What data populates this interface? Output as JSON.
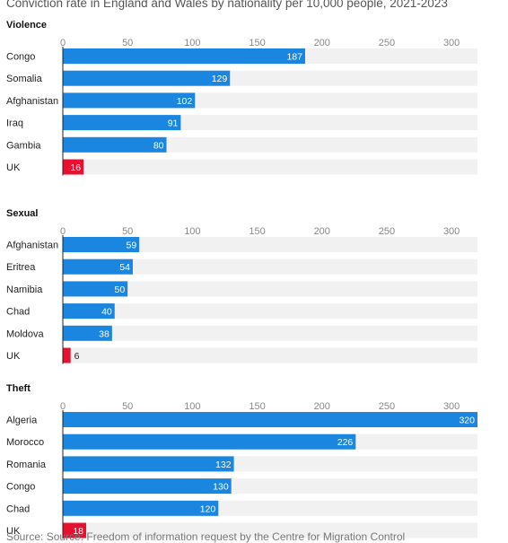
{
  "subtitle": "Conviction rate in England and Wales by nationality per 10,000 people, 2021-2023",
  "source": "Source: Source: Freedom of information request by the Centre for Migration Control",
  "colors": {
    "bar": "#1a86e0",
    "highlight": "#e8102e",
    "track": "#f1f1f1",
    "axis": "#222222"
  },
  "chart_data": [
    {
      "type": "bar",
      "title": "Violence",
      "categories": [
        "Congo",
        "Somalia",
        "Afghanistan",
        "Iraq",
        "Gambia",
        "UK"
      ],
      "values": [
        187,
        129,
        102,
        91,
        80,
        16
      ],
      "highlight": [
        "UK"
      ],
      "xlim": [
        0,
        320
      ],
      "xticks": [
        0,
        50,
        100,
        150,
        200,
        250,
        300
      ]
    },
    {
      "type": "bar",
      "title": "Sexual",
      "categories": [
        "Afghanistan",
        "Eritrea",
        "Namibia",
        "Chad",
        "Moldova",
        "UK"
      ],
      "values": [
        59,
        54,
        50,
        40,
        38,
        6
      ],
      "highlight": [
        "UK"
      ],
      "xlim": [
        0,
        320
      ],
      "xticks": [
        0,
        50,
        100,
        150,
        200,
        250,
        300
      ]
    },
    {
      "type": "bar",
      "title": "Theft",
      "categories": [
        "Algeria",
        "Morocco",
        "Romania",
        "Congo",
        "Chad",
        "UK"
      ],
      "values": [
        320,
        226,
        132,
        130,
        120,
        18
      ],
      "highlight": [
        "UK"
      ],
      "xlim": [
        0,
        320
      ],
      "xticks": [
        0,
        50,
        100,
        150,
        200,
        250,
        300
      ]
    }
  ]
}
